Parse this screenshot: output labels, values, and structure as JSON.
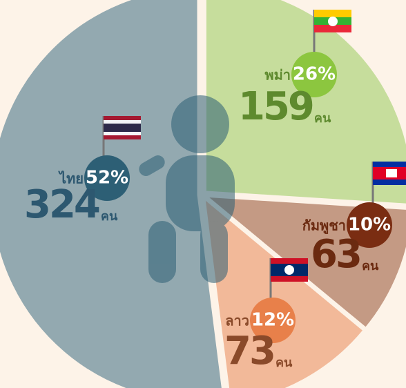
{
  "chart_data": {
    "type": "pie",
    "categories": [
      "พม่า",
      "กัมพูชา",
      "ลาว",
      "ไทย"
    ],
    "values": [
      26,
      10,
      12,
      52
    ],
    "value_labels": [
      "26%",
      "10%",
      "12%",
      "52%"
    ],
    "counts": [
      159,
      63,
      73,
      324
    ],
    "count_unit": "คน",
    "colors": [
      "#c6dd9c",
      "#c49a84",
      "#f2b999",
      "#93a9b0"
    ]
  }
}
